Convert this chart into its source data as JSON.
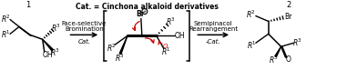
{
  "bg_color": "#ffffff",
  "black": "#000000",
  "red": "#cc0000",
  "fig_width": 3.81,
  "fig_height": 0.77,
  "dpi": 100,
  "xmax": 381,
  "ymax": 77,
  "label1": "1",
  "label2": "2",
  "arrow1_top": "Face-selective",
  "arrow1_mid": "Bromination",
  "arrow1_bot": "Cat.",
  "arrow2_top": "Semipinacol",
  "arrow2_mid": "Rearrangement",
  "arrow2_bot": "-Cat.",
  "cat_text": "Cat. = Cinchona alkaloid derivatives"
}
